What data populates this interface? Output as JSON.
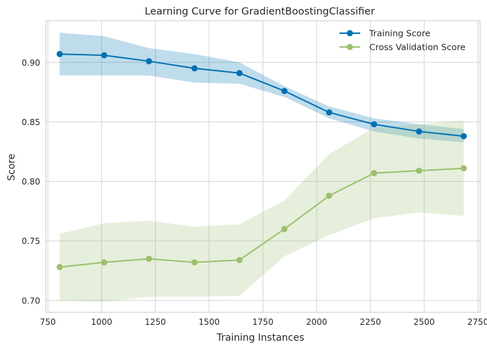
{
  "chart_data": {
    "type": "line",
    "title": "Learning Curve for GradientBoostingClassifier",
    "xlabel": "Training Instances",
    "ylabel": "Score",
    "xlim": [
      740,
      2760
    ],
    "ylim": [
      0.69,
      0.935
    ],
    "xticks": [
      750,
      1000,
      1250,
      1500,
      1750,
      2000,
      2250,
      2500,
      2750
    ],
    "yticks": [
      0.7,
      0.75,
      0.8,
      0.85,
      0.9
    ],
    "xtick_labels": [
      "750",
      "1000",
      "1250",
      "1500",
      "1750",
      "2000",
      "2250",
      "2500",
      "2750"
    ],
    "ytick_labels": [
      "0.70",
      "0.75",
      "0.80",
      "0.85",
      "0.90"
    ],
    "grid": true,
    "legend_position": "top-right",
    "x": [
      805,
      1012,
      1220,
      1432,
      1641,
      1850,
      2058,
      2267,
      2476,
      2684
    ],
    "series": [
      {
        "name": "Training Score",
        "color": "#0072b2",
        "band_color": "#0072b2",
        "values": [
          0.907,
          0.906,
          0.901,
          0.895,
          0.891,
          0.876,
          0.858,
          0.848,
          0.842,
          0.838
        ],
        "upper": [
          0.925,
          0.922,
          0.912,
          0.907,
          0.9,
          0.88,
          0.863,
          0.853,
          0.848,
          0.844
        ],
        "lower": [
          0.889,
          0.889,
          0.889,
          0.883,
          0.882,
          0.871,
          0.853,
          0.842,
          0.836,
          0.833
        ]
      },
      {
        "name": "Cross Validation Score",
        "color": "#9bc06f",
        "band_color": "#9bc06f",
        "values": [
          0.728,
          0.732,
          0.735,
          0.732,
          0.734,
          0.76,
          0.788,
          0.807,
          0.809,
          0.811
        ],
        "upper": [
          0.756,
          0.765,
          0.767,
          0.762,
          0.764,
          0.784,
          0.823,
          0.845,
          0.848,
          0.851
        ],
        "lower": [
          0.7,
          0.699,
          0.703,
          0.703,
          0.704,
          0.737,
          0.755,
          0.769,
          0.774,
          0.771
        ]
      }
    ]
  }
}
